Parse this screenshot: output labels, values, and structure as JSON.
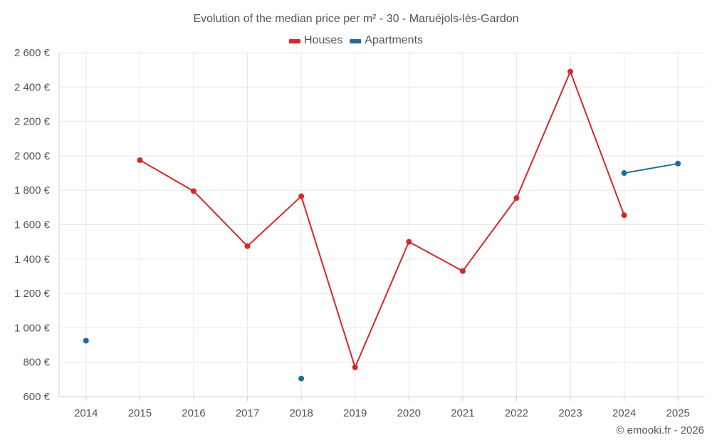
{
  "chart_data": {
    "type": "line",
    "title": "Evolution of the median price per m² - 30 - Maruéjols-lès-Gardon",
    "categories": [
      "2014",
      "2015",
      "2016",
      "2017",
      "2018",
      "2019",
      "2020",
      "2021",
      "2022",
      "2023",
      "2024",
      "2025"
    ],
    "ylim": [
      600,
      2600
    ],
    "yticks": [
      600,
      800,
      1000,
      1200,
      1400,
      1600,
      1800,
      2000,
      2200,
      2400,
      2600
    ],
    "ytick_labels": [
      "600 €",
      "800 €",
      "1 000 €",
      "1 200 €",
      "1 400 €",
      "1 600 €",
      "1 800 €",
      "2 000 €",
      "2 200 €",
      "2 400 €",
      "2 600 €"
    ],
    "grid": true,
    "legend_position": "top-center",
    "series": [
      {
        "name": "Houses",
        "color": "#d62728",
        "values": [
          null,
          1975,
          1795,
          1475,
          1765,
          770,
          1500,
          1330,
          1755,
          2490,
          1655,
          null
        ]
      },
      {
        "name": "Apartments",
        "color": "#1f6b9c",
        "values": [
          925,
          null,
          null,
          null,
          705,
          null,
          null,
          null,
          null,
          null,
          1900,
          1955
        ]
      }
    ]
  },
  "credit": "© emooki.fr - 2026"
}
